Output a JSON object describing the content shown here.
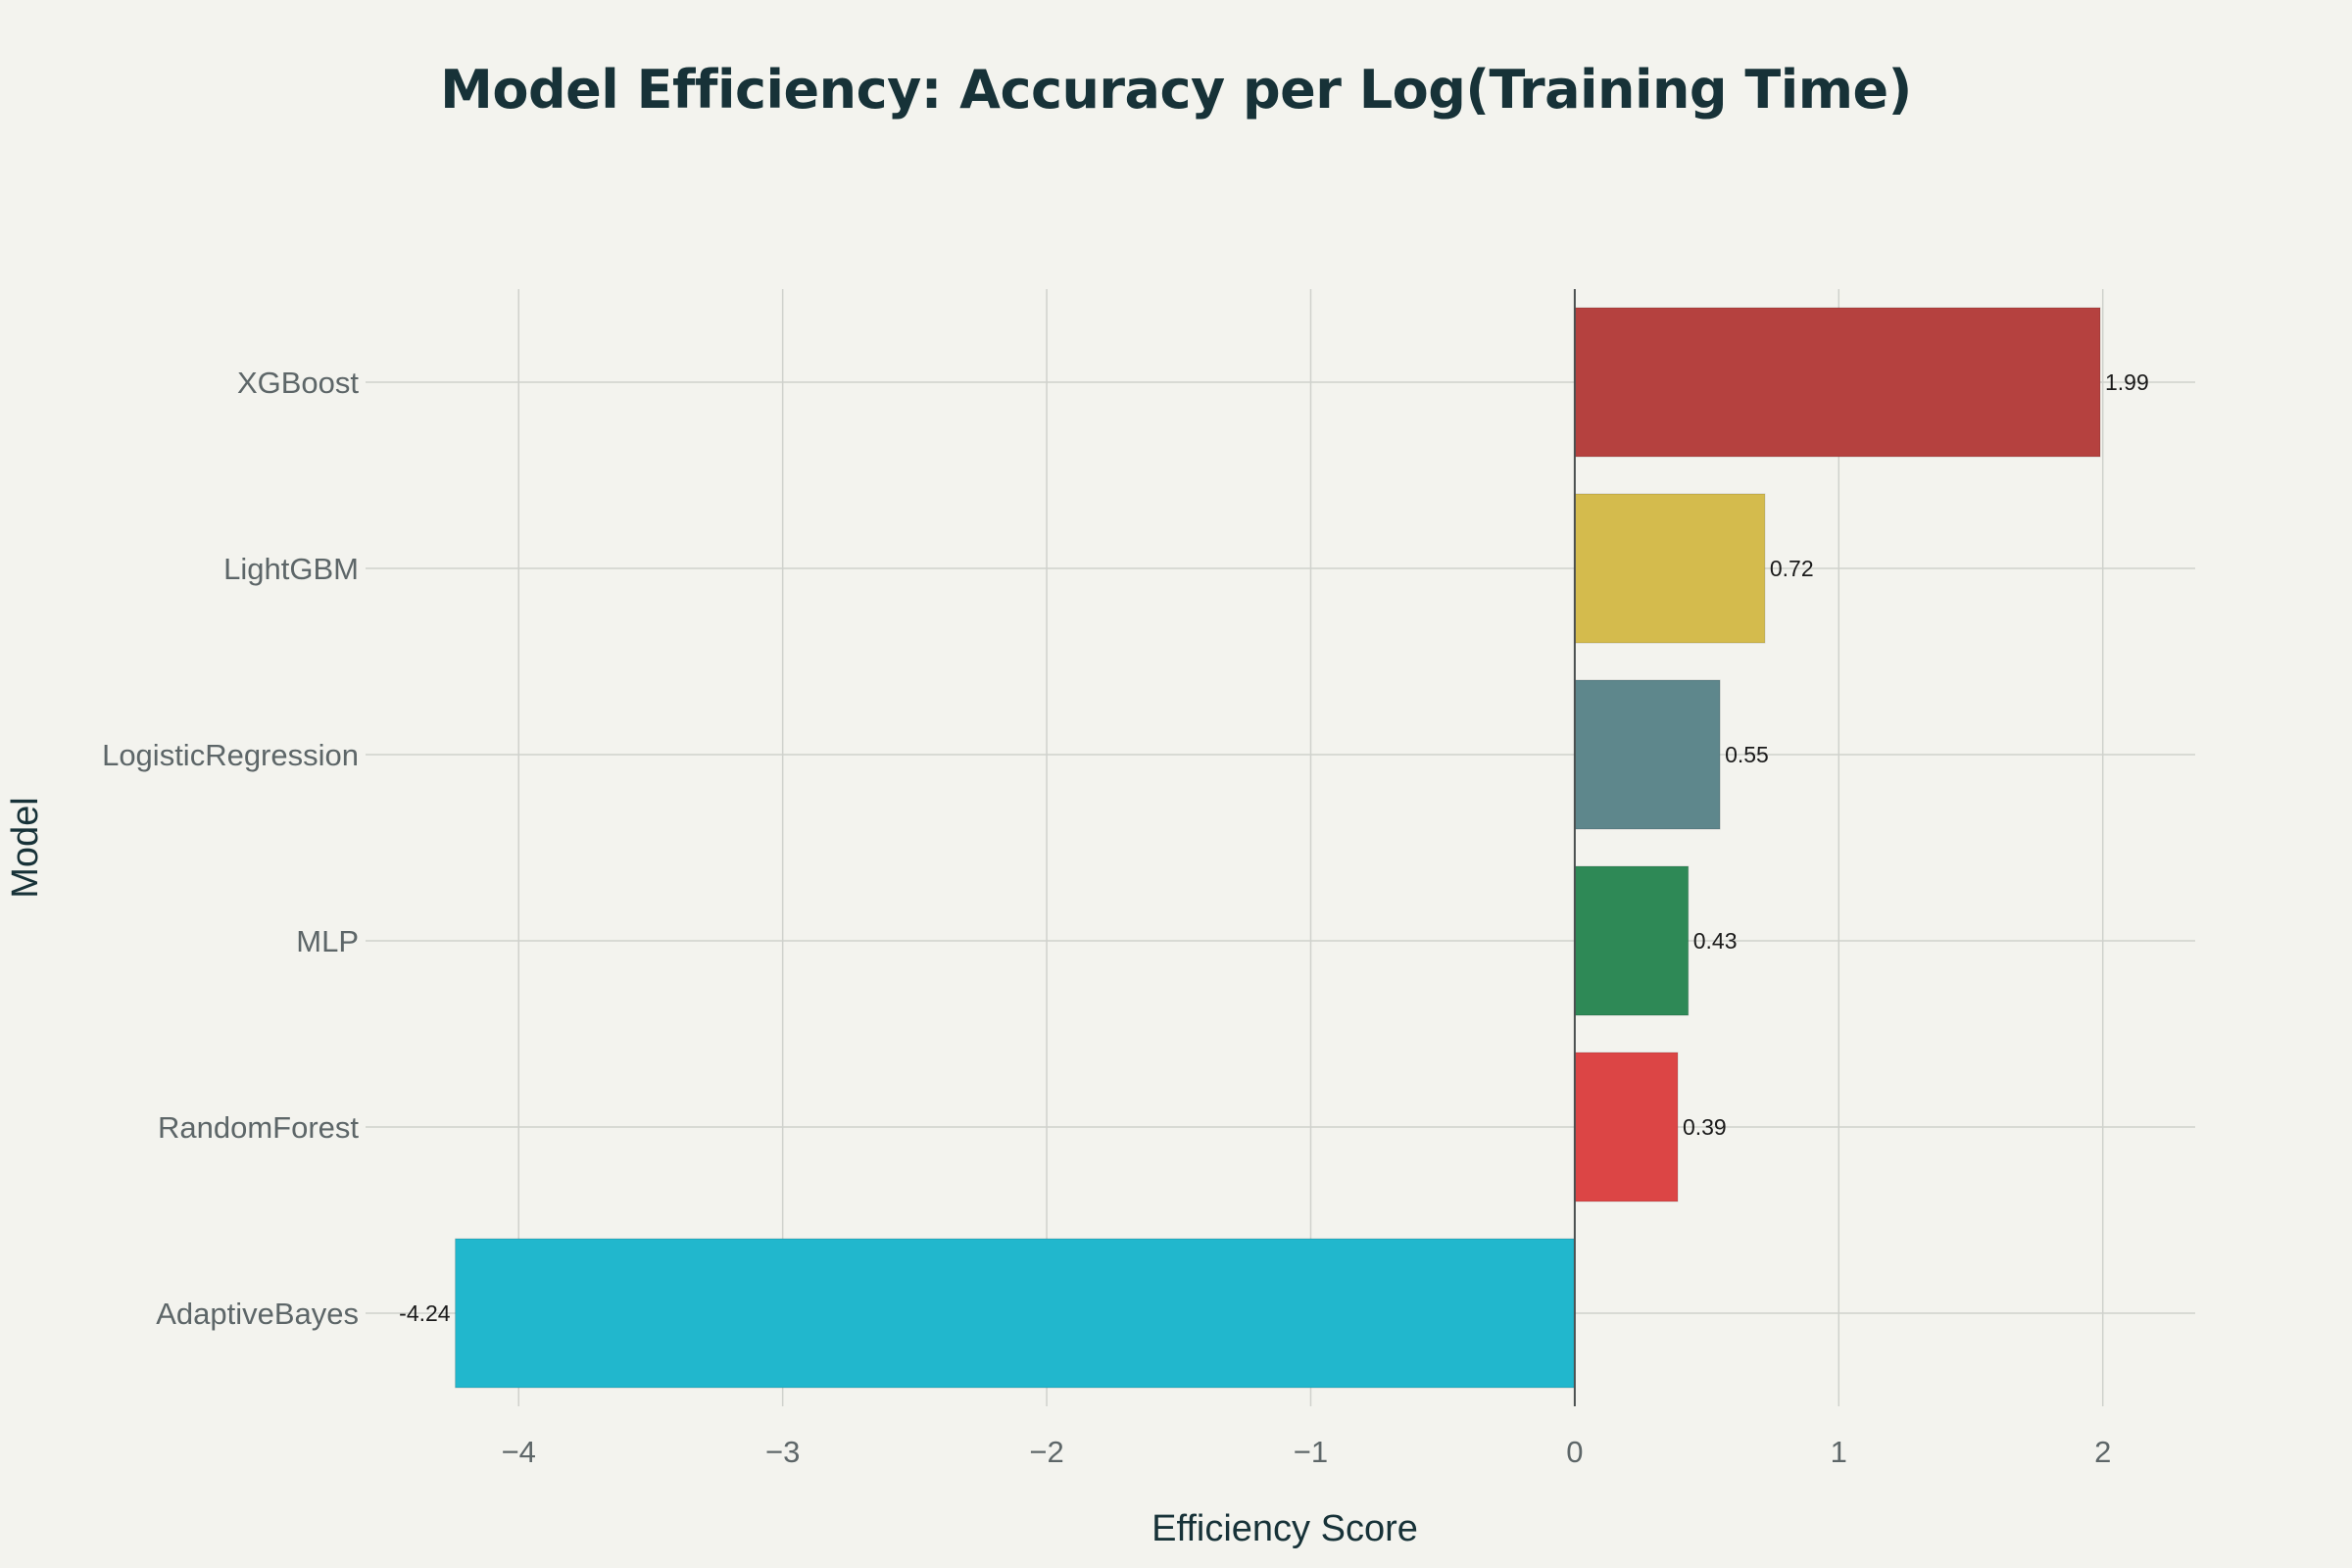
{
  "chart_data": {
    "type": "bar",
    "orientation": "horizontal",
    "title": "Model Efficiency: Accuracy per Log(Training Time)",
    "xlabel": "Efficiency Score",
    "ylabel": "Model",
    "xlim": [
      -4.58,
      2.35
    ],
    "xticks": [
      -4,
      -3,
      -2,
      -1,
      0,
      1,
      2
    ],
    "xtick_labels": [
      "−4",
      "−3",
      "−2",
      "−1",
      "0",
      "1",
      "2"
    ],
    "grid": true,
    "categories": [
      "XGBoost",
      "LightGBM",
      "LogisticRegression",
      "MLP",
      "RandomForest",
      "AdaptiveBayes"
    ],
    "values": [
      1.99,
      0.72,
      0.55,
      0.43,
      0.39,
      -4.24
    ],
    "value_labels": [
      "1.99",
      "0.72",
      "0.55",
      "0.43",
      "0.39",
      "-4.24"
    ],
    "colors": [
      "#b5413f",
      "#d4bb4d",
      "#5e878c",
      "#2e8956",
      "#dc4545",
      "#21b7cd"
    ]
  }
}
